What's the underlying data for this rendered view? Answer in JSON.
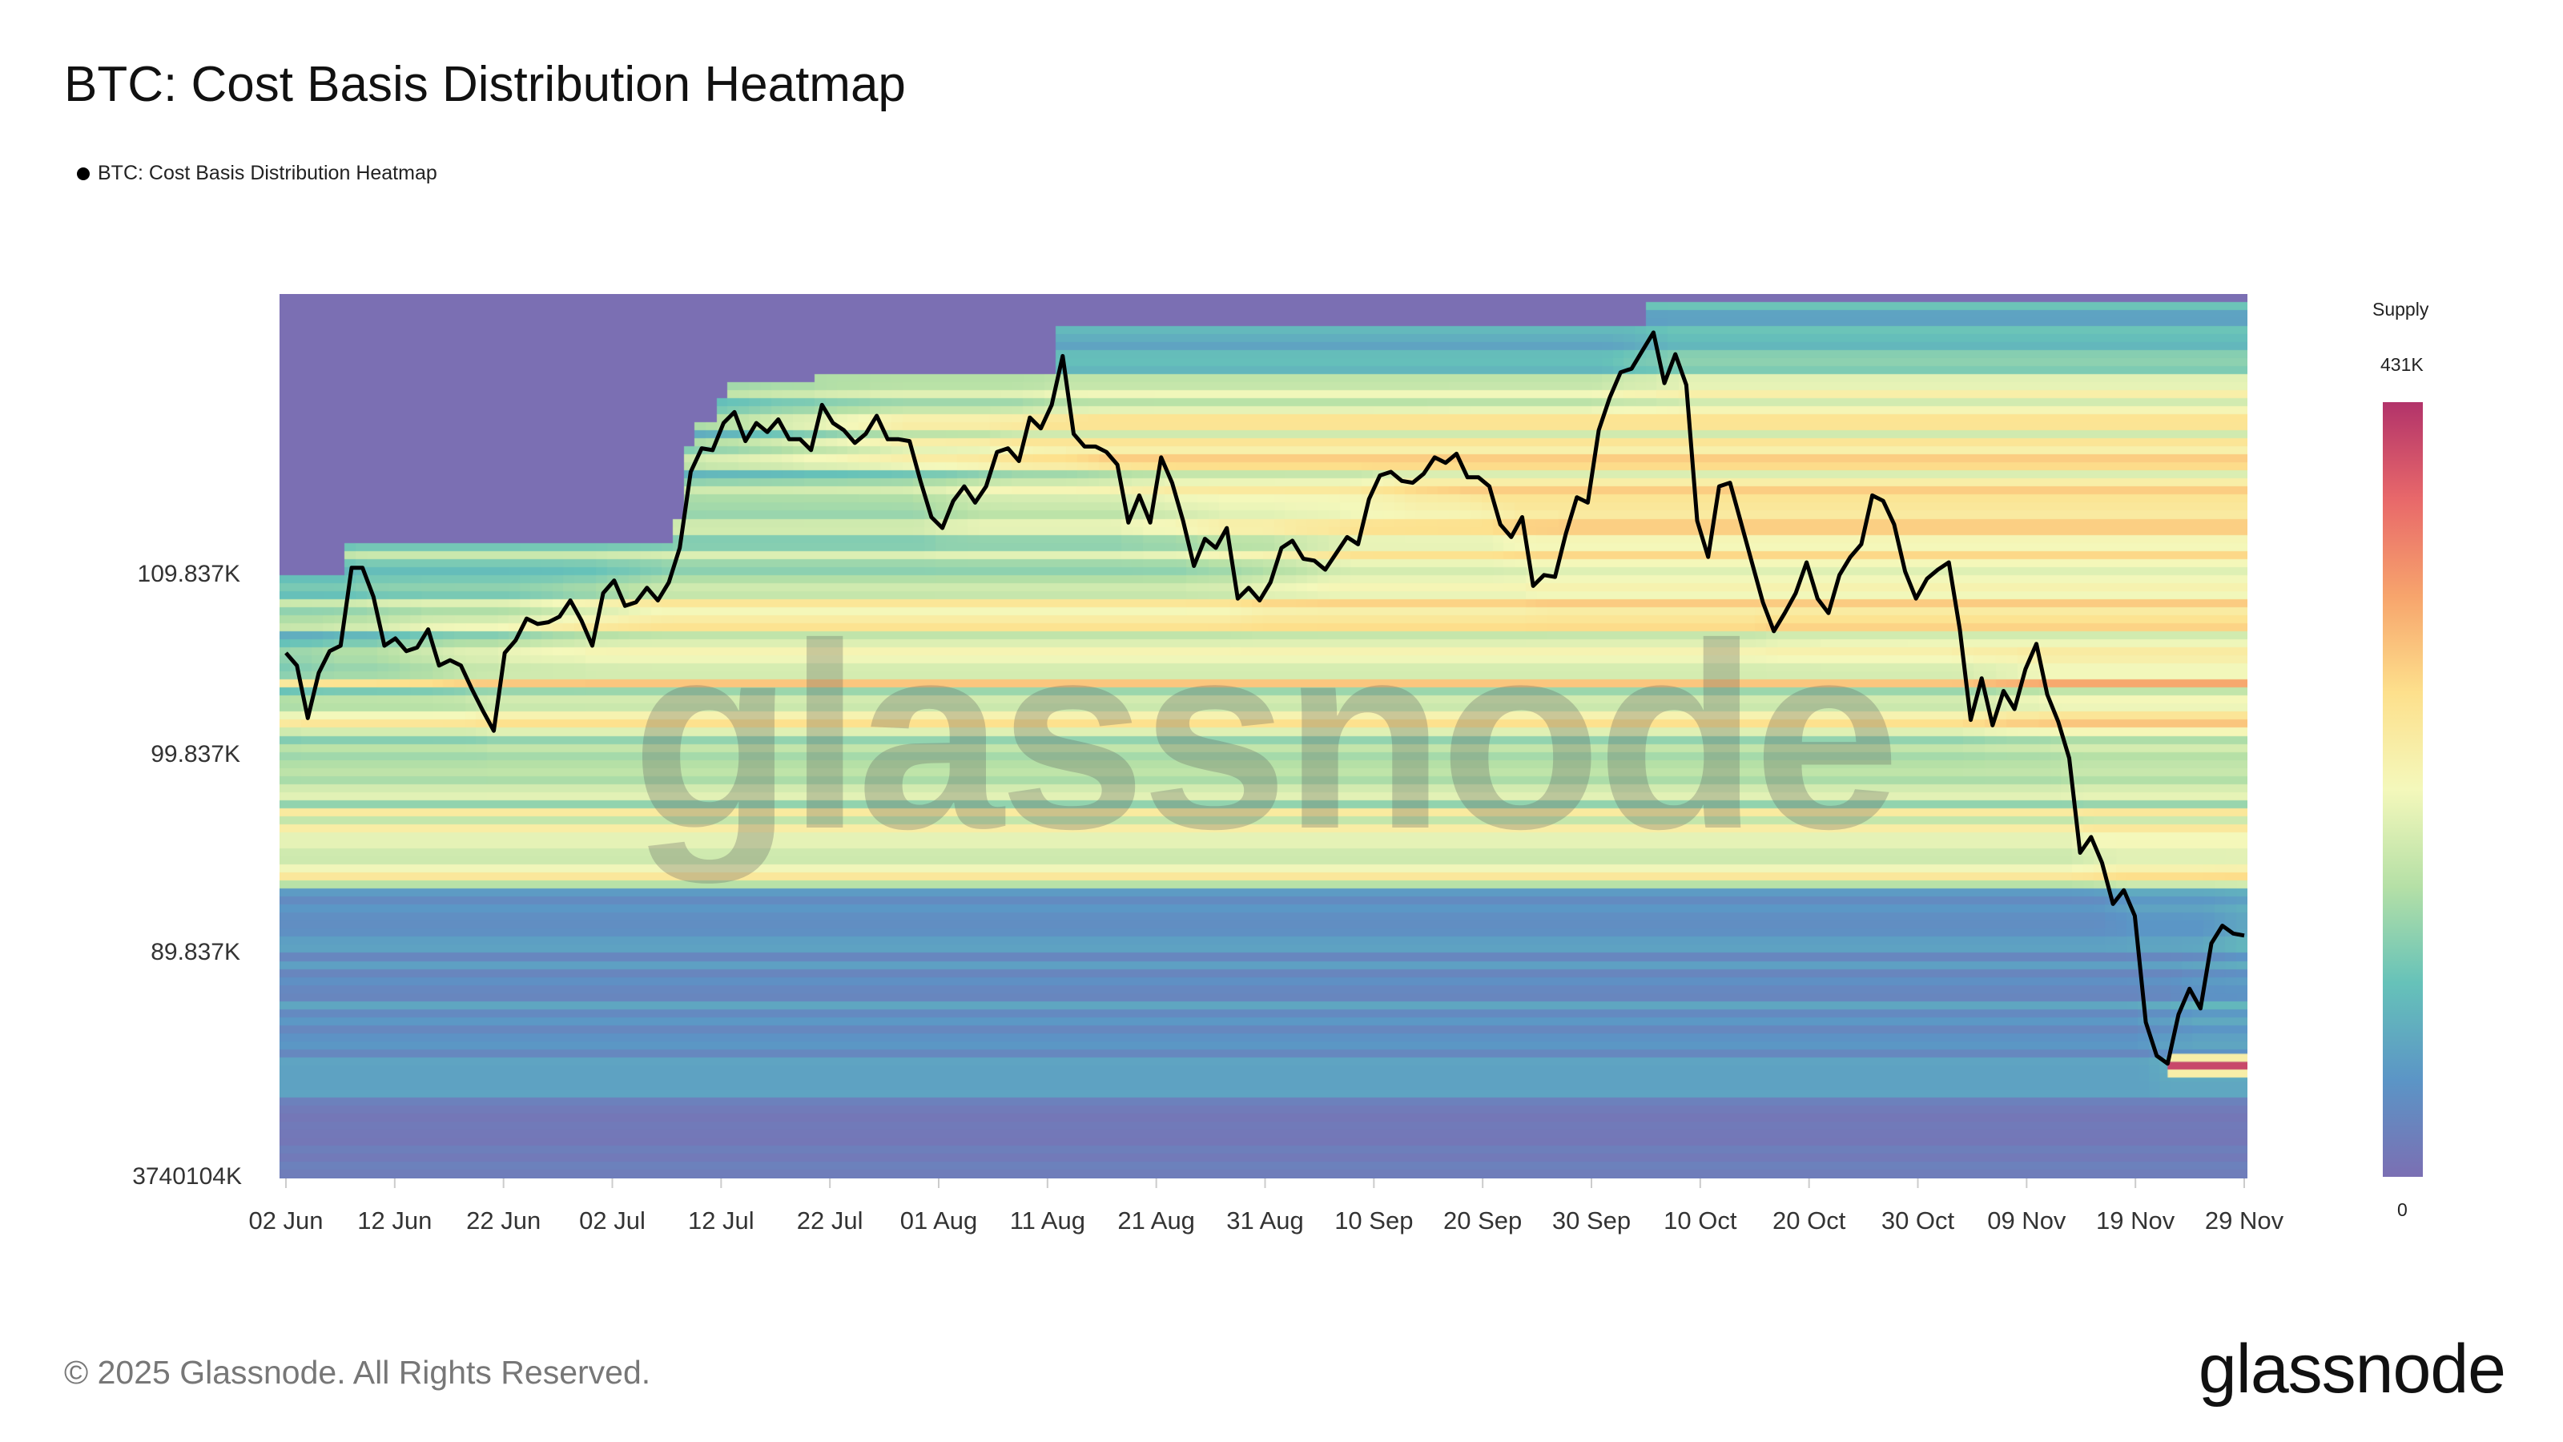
{
  "chart_data": {
    "type": "heatmap",
    "title": "BTC: Cost Basis Distribution Heatmap",
    "legend": [
      {
        "name": "BTC: Cost Basis Distribution Heatmap",
        "color": "#000000"
      }
    ],
    "x_ticks": [
      "02 Jun",
      "12 Jun",
      "22 Jun",
      "02 Jul",
      "12 Jul",
      "22 Jul",
      "01 Aug",
      "11 Aug",
      "21 Aug",
      "31 Aug",
      "10 Sep",
      "20 Sep",
      "30 Sep",
      "10 Oct",
      "20 Oct",
      "30 Oct",
      "09 Nov",
      "19 Nov",
      "29 Nov"
    ],
    "x_range": [
      "2025-06-02",
      "2025-11-29"
    ],
    "y_ticks": [
      {
        "label": "109.837K",
        "value": 109.837
      },
      {
        "label": "99.837K",
        "value": 99.837
      },
      {
        "label": "89.837K",
        "value": 89.837
      },
      {
        "label": "3740104K",
        "value": null
      }
    ],
    "y_unit": "K USD",
    "colorbar": {
      "title": "Supply",
      "max_label": "431K",
      "min_label": "0",
      "max": 431000,
      "min": 0,
      "colors": [
        "#7b6fb3",
        "#5b95c6",
        "#66c2b9",
        "#b5e0a6",
        "#f4f8bb",
        "#fde08c",
        "#f7a46c",
        "#e8686a",
        "#b2336a"
      ]
    },
    "price_series_k": [
      105.5,
      104.8,
      101.9,
      104.4,
      105.6,
      105.9,
      110.2,
      110.2,
      108.6,
      105.9,
      106.3,
      105.6,
      105.8,
      106.8,
      104.8,
      105.1,
      104.8,
      103.5,
      102.3,
      101.2,
      105.5,
      106.2,
      107.4,
      107.1,
      107.2,
      107.5,
      108.4,
      107.3,
      105.9,
      108.8,
      109.5,
      108.1,
      108.3,
      109.1,
      108.4,
      109.4,
      111.3,
      115.5,
      116.8,
      116.7,
      118.2,
      118.8,
      117.2,
      118.2,
      117.7,
      118.4,
      117.3,
      117.3,
      116.7,
      119.2,
      118.2,
      117.8,
      117.1,
      117.6,
      118.6,
      117.3,
      117.3,
      117.2,
      115.0,
      113.0,
      112.4,
      113.9,
      114.7,
      113.8,
      114.7,
      116.6,
      116.8,
      116.1,
      118.5,
      117.9,
      119.2,
      121.9,
      117.6,
      116.9,
      116.9,
      116.6,
      115.9,
      112.7,
      114.2,
      112.7,
      116.3,
      114.9,
      112.8,
      110.3,
      111.8,
      111.3,
      112.4,
      108.5,
      109.1,
      108.4,
      109.4,
      111.3,
      111.7,
      110.7,
      110.6,
      110.1,
      111.0,
      111.9,
      111.5,
      114.0,
      115.3,
      115.5,
      115.0,
      114.9,
      115.4,
      116.3,
      116.0,
      116.5,
      115.2,
      115.2,
      114.7,
      112.6,
      111.9,
      113.0,
      109.2,
      109.8,
      109.7,
      112.1,
      114.1,
      113.8,
      117.8,
      119.6,
      121.0,
      121.2,
      122.2,
      123.2,
      120.4,
      122.0,
      120.3,
      112.8,
      110.8,
      114.7,
      114.9,
      112.7,
      110.5,
      108.3,
      106.7,
      107.7,
      108.8,
      110.5,
      108.5,
      107.7,
      109.8,
      110.8,
      111.5,
      114.2,
      113.9,
      112.6,
      110.0,
      108.5,
      109.6,
      110.1,
      110.5,
      106.8,
      101.8,
      104.1,
      101.5,
      103.4,
      102.4,
      104.6,
      106.0,
      103.2,
      101.7,
      99.7,
      94.9,
      95.7,
      94.4,
      92.3,
      93.0,
      91.7,
      86.3,
      84.6,
      84.2,
      86.7,
      88.0,
      87.0,
      90.3,
      91.2,
      90.8,
      90.7
    ]
  },
  "watermark": "glassnode",
  "footer": {
    "copyright": "© 2025 Glassnode. All Rights Reserved.",
    "logo": "glassnode"
  }
}
